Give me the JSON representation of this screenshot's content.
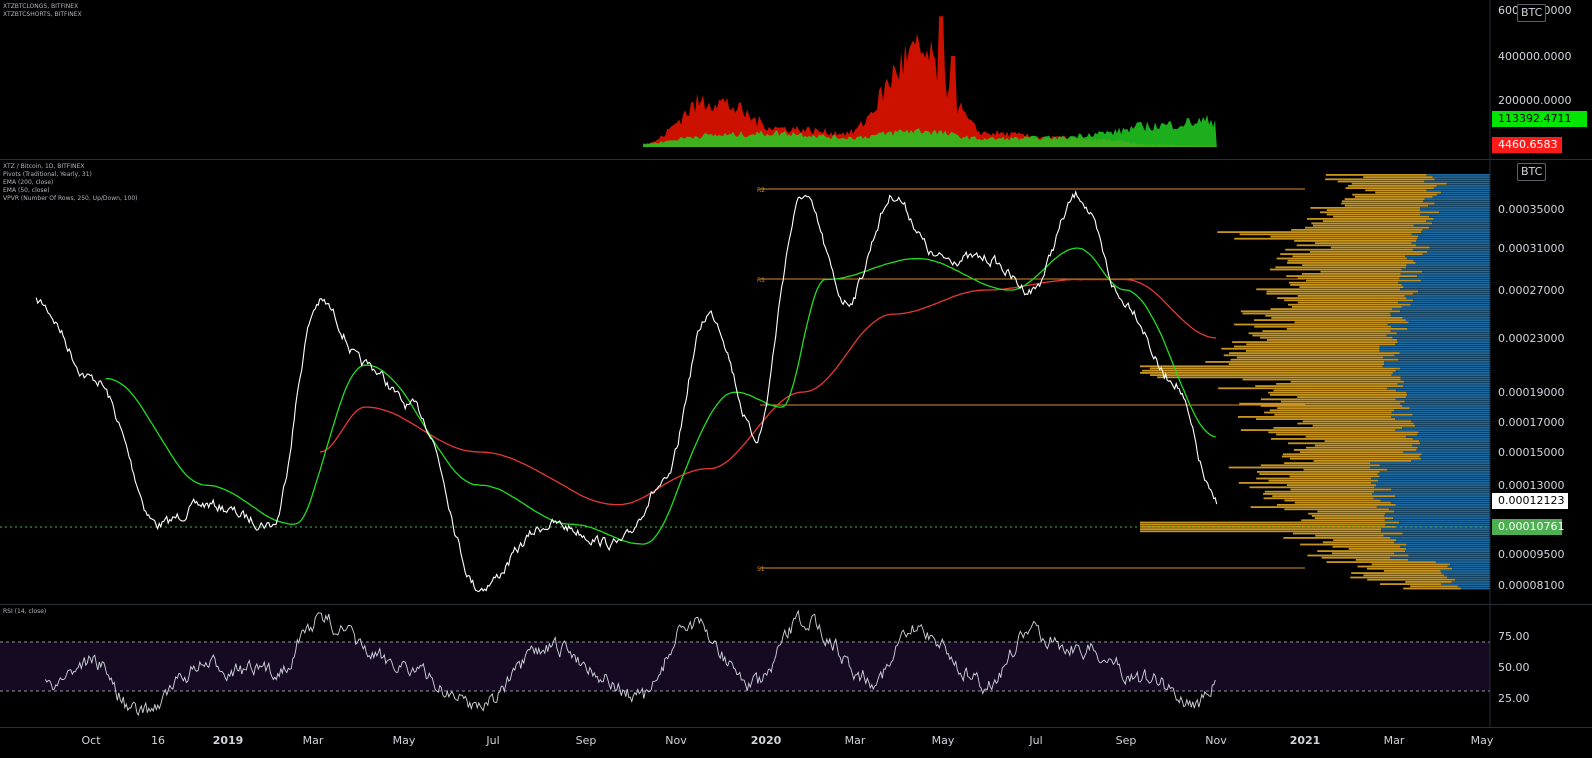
{
  "currency_label": "BTC",
  "longs_shorts_pane": {
    "legend": [
      "XTZBTCLONGS, BITFINEX",
      "XTZBTCSHORTS, BITFINEX"
    ],
    "axis_ticks": [
      "600000.0000",
      "400000.0000",
      "200000.0000"
    ],
    "last_longs": "113392.4711",
    "last_shorts": "4460.6583",
    "colors": {
      "longs": "#00e600",
      "shorts": "#cc0000",
      "overlap": "#b34700"
    }
  },
  "price_pane": {
    "legend": [
      "XTZ / Bitcoin, 1D, BITFINEX",
      "Pivots (Traditional, Yearly, 31)",
      "EMA (200, close)",
      "EMA (50, close)",
      "VPVR (Number Of Rows, 250, Up/Down, 100)"
    ],
    "axis_ticks": [
      "0.00035000",
      "0.00031000",
      "0.00027000",
      "0.00023000",
      "0.00019000",
      "0.00017000",
      "0.00015000",
      "0.00013000",
      "0.00009500",
      "0.00008100"
    ],
    "last_price": "0.00012123",
    "poc_price": "0.00010761",
    "pivot_labels": [
      "R2",
      "R1",
      "S1"
    ]
  },
  "rsi_pane": {
    "legend": [
      "RSI (14, close)"
    ],
    "axis_ticks": [
      "75.00",
      "50.00",
      "25.00"
    ]
  },
  "time_axis": [
    "Oct",
    "16",
    "2019",
    "Mar",
    "May",
    "Jul",
    "Sep",
    "Nov",
    "2020",
    "Mar",
    "May",
    "Jul",
    "Sep",
    "Nov",
    "2021",
    "Mar",
    "May"
  ],
  "chart_data": [
    {
      "type": "area",
      "series": [
        {
          "name": "XTZBTCLONGS",
          "x": [
            "2019-11-01",
            "2019-12-15",
            "2020-02-01",
            "2020-03-15",
            "2020-05-01",
            "2020-06-15",
            "2020-08-01",
            "2020-09-01",
            "2020-10-01",
            "2020-11-15"
          ],
          "values": [
            15000,
            50000,
            60000,
            40000,
            70000,
            35000,
            40000,
            60000,
            90000,
            113392
          ]
        },
        {
          "name": "XTZBTCSHORTS",
          "x": [
            "2019-11-01",
            "2019-12-15",
            "2020-02-01",
            "2020-03-15",
            "2020-05-01",
            "2020-06-15",
            "2020-08-01",
            "2020-09-01",
            "2020-10-01",
            "2020-11-15"
          ],
          "values": [
            10000,
            200000,
            80000,
            60000,
            400000,
            60000,
            40000,
            30000,
            10000,
            4460
          ]
        }
      ],
      "ylim": [
        0,
        600000
      ]
    },
    {
      "type": "line",
      "series": [
        {
          "name": "XTZ / Bitcoin",
          "x": [
            "2018-09-25",
            "2018-11-01",
            "2018-12-15",
            "2019-01-15",
            "2019-03-01",
            "2019-04-01",
            "2019-05-01",
            "2019-06-01",
            "2019-07-15",
            "2019-09-01",
            "2019-10-15",
            "2019-11-15",
            "2019-12-15",
            "2020-01-15",
            "2020-02-15",
            "2020-03-15",
            "2020-04-15",
            "2020-05-15",
            "2020-06-15",
            "2020-07-15",
            "2020-08-15",
            "2020-09-15",
            "2020-10-15",
            "2020-11-15"
          ],
          "values": [
            0.00026,
            0.0002,
            0.00011,
            0.00012,
            0.00011,
            0.00026,
            0.00021,
            0.00018,
            8e-05,
            0.00011,
            0.0001,
            0.00013,
            0.00025,
            0.00016,
            0.00036,
            0.00026,
            0.00036,
            0.0003,
            0.0003,
            0.00027,
            0.00036,
            0.00026,
            0.0002,
            0.00012123
          ]
        },
        {
          "name": "EMA (50, close)",
          "x": [
            "2018-11-10",
            "2019-01-15",
            "2019-03-15",
            "2019-05-01",
            "2019-07-15",
            "2019-09-15",
            "2019-11-01",
            "2020-01-01",
            "2020-02-01",
            "2020-03-01",
            "2020-05-01",
            "2020-07-01",
            "2020-08-15",
            "2020-09-15",
            "2020-11-15"
          ],
          "values": [
            0.0002,
            0.00013,
            0.00011,
            0.00021,
            0.00013,
            0.00011,
            0.0001,
            0.00019,
            0.00018,
            0.00028,
            0.0003,
            0.00027,
            0.00031,
            0.00027,
            0.00016
          ]
        },
        {
          "name": "EMA (200, close)",
          "x": [
            "2019-04-01",
            "2019-05-01",
            "2019-07-15",
            "2019-10-15",
            "2019-12-15",
            "2020-02-15",
            "2020-04-15",
            "2020-06-15",
            "2020-08-15",
            "2020-09-15",
            "2020-11-15"
          ],
          "values": [
            0.00015,
            0.00018,
            0.00015,
            0.00012,
            0.00014,
            0.00019,
            0.00025,
            0.00027,
            0.00028,
            0.00028,
            0.00023
          ]
        }
      ],
      "pivots": [
        {
          "label": "R2",
          "value": 0.00037
        },
        {
          "label": "R1",
          "value": 0.00028
        },
        {
          "label": "S1",
          "value": 8e-05
        }
      ],
      "ylim": [
        7.5e-05,
        0.00038
      ]
    },
    {
      "type": "line",
      "series": [
        {
          "name": "RSI",
          "x": [
            "2018-10-01",
            "2018-11-01",
            "2018-12-01",
            "2019-01-15",
            "2019-03-01",
            "2019-04-01",
            "2019-05-15",
            "2019-07-15",
            "2019-09-01",
            "2019-11-01",
            "2019-12-01",
            "2020-01-15",
            "2020-02-15",
            "2020-04-01",
            "2020-05-01",
            "2020-06-15",
            "2020-07-15",
            "2020-08-15",
            "2020-10-01",
            "2020-11-01",
            "2020-11-15"
          ],
          "values": [
            35,
            55,
            12,
            50,
            45,
            88,
            55,
            20,
            65,
            25,
            85,
            35,
            88,
            40,
            80,
            35,
            78,
            65,
            40,
            20,
            35
          ]
        }
      ],
      "levels": [
        70,
        30
      ],
      "ylim": [
        5,
        95
      ]
    }
  ]
}
